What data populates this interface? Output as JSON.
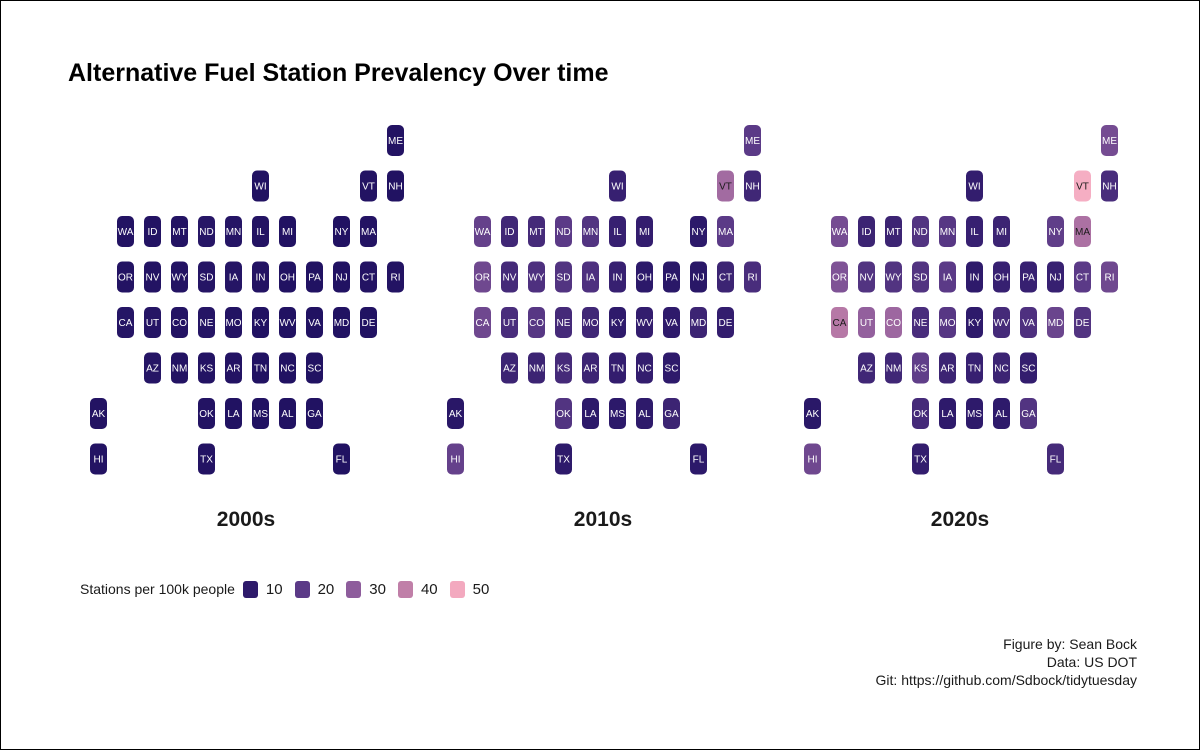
{
  "title": "Alternative Fuel Station Prevalency Over time",
  "chart_data": {
    "type": "heatmap",
    "subtype": "us-state-tile-grid",
    "title": "Alternative Fuel Station Prevalency Over time",
    "grid_rows": 8,
    "grid_cols": 12,
    "tile_layout": [
      {
        "state": "ME",
        "row": 0,
        "col": 11
      },
      {
        "state": "WI",
        "row": 1,
        "col": 6
      },
      {
        "state": "VT",
        "row": 1,
        "col": 10
      },
      {
        "state": "NH",
        "row": 1,
        "col": 11
      },
      {
        "state": "WA",
        "row": 2,
        "col": 1
      },
      {
        "state": "ID",
        "row": 2,
        "col": 2
      },
      {
        "state": "MT",
        "row": 2,
        "col": 3
      },
      {
        "state": "ND",
        "row": 2,
        "col": 4
      },
      {
        "state": "MN",
        "row": 2,
        "col": 5
      },
      {
        "state": "IL",
        "row": 2,
        "col": 6
      },
      {
        "state": "MI",
        "row": 2,
        "col": 7
      },
      {
        "state": "NY",
        "row": 2,
        "col": 9
      },
      {
        "state": "MA",
        "row": 2,
        "col": 10
      },
      {
        "state": "OR",
        "row": 3,
        "col": 1
      },
      {
        "state": "NV",
        "row": 3,
        "col": 2
      },
      {
        "state": "WY",
        "row": 3,
        "col": 3
      },
      {
        "state": "SD",
        "row": 3,
        "col": 4
      },
      {
        "state": "IA",
        "row": 3,
        "col": 5
      },
      {
        "state": "IN",
        "row": 3,
        "col": 6
      },
      {
        "state": "OH",
        "row": 3,
        "col": 7
      },
      {
        "state": "PA",
        "row": 3,
        "col": 8
      },
      {
        "state": "NJ",
        "row": 3,
        "col": 9
      },
      {
        "state": "CT",
        "row": 3,
        "col": 10
      },
      {
        "state": "RI",
        "row": 3,
        "col": 11
      },
      {
        "state": "CA",
        "row": 4,
        "col": 1
      },
      {
        "state": "UT",
        "row": 4,
        "col": 2
      },
      {
        "state": "CO",
        "row": 4,
        "col": 3
      },
      {
        "state": "NE",
        "row": 4,
        "col": 4
      },
      {
        "state": "MO",
        "row": 4,
        "col": 5
      },
      {
        "state": "KY",
        "row": 4,
        "col": 6
      },
      {
        "state": "WV",
        "row": 4,
        "col": 7
      },
      {
        "state": "VA",
        "row": 4,
        "col": 8
      },
      {
        "state": "MD",
        "row": 4,
        "col": 9
      },
      {
        "state": "DE",
        "row": 4,
        "col": 10
      },
      {
        "state": "AZ",
        "row": 5,
        "col": 2
      },
      {
        "state": "NM",
        "row": 5,
        "col": 3
      },
      {
        "state": "KS",
        "row": 5,
        "col": 4
      },
      {
        "state": "AR",
        "row": 5,
        "col": 5
      },
      {
        "state": "TN",
        "row": 5,
        "col": 6
      },
      {
        "state": "NC",
        "row": 5,
        "col": 7
      },
      {
        "state": "SC",
        "row": 5,
        "col": 8
      },
      {
        "state": "AK",
        "row": 6,
        "col": 0
      },
      {
        "state": "OK",
        "row": 6,
        "col": 4
      },
      {
        "state": "LA",
        "row": 6,
        "col": 5
      },
      {
        "state": "MS",
        "row": 6,
        "col": 6
      },
      {
        "state": "AL",
        "row": 6,
        "col": 7
      },
      {
        "state": "GA",
        "row": 6,
        "col": 8
      },
      {
        "state": "HI",
        "row": 7,
        "col": 0
      },
      {
        "state": "TX",
        "row": 7,
        "col": 4
      },
      {
        "state": "FL",
        "row": 7,
        "col": 9
      }
    ],
    "panels": [
      {
        "label": "2000s",
        "values": {
          "ME": 4,
          "WI": 3,
          "VT": 4,
          "NH": 3,
          "WA": 4,
          "ID": 4,
          "MT": 4,
          "ND": 6,
          "MN": 5,
          "IL": 4,
          "MI": 3,
          "NY": 3,
          "MA": 4,
          "OR": 4,
          "NV": 4,
          "WY": 4,
          "SD": 5,
          "IA": 5,
          "IN": 4,
          "OH": 3,
          "PA": 3,
          "NJ": 3,
          "CT": 4,
          "RI": 4,
          "CA": 5,
          "UT": 5,
          "CO": 4,
          "NE": 5,
          "MO": 4,
          "KY": 3,
          "WV": 3,
          "VA": 3,
          "MD": 3,
          "DE": 3,
          "AZ": 5,
          "NM": 4,
          "KS": 4,
          "AR": 4,
          "TN": 3,
          "NC": 3,
          "SC": 3,
          "AK": 4,
          "OK": 4,
          "LA": 3,
          "MS": 3,
          "AL": 3,
          "GA": 3,
          "HI": 4,
          "TX": 4,
          "FL": 3
        }
      },
      {
        "label": "2010s",
        "values": {
          "ME": 20,
          "WI": 12,
          "VT": 34,
          "NH": 14,
          "WA": 22,
          "ID": 14,
          "MT": 15,
          "ND": 20,
          "MN": 18,
          "IL": 12,
          "MI": 11,
          "NY": 9,
          "MA": 20,
          "OR": 24,
          "NV": 15,
          "WY": 17,
          "SD": 18,
          "IA": 17,
          "IN": 12,
          "OH": 9,
          "PA": 8,
          "NJ": 7,
          "CT": 13,
          "RI": 16,
          "CA": 24,
          "UT": 16,
          "CO": 19,
          "NE": 15,
          "MO": 14,
          "KY": 10,
          "WV": 11,
          "VA": 10,
          "MD": 13,
          "DE": 11,
          "AZ": 13,
          "NM": 13,
          "KS": 15,
          "AR": 13,
          "TN": 11,
          "NC": 11,
          "SC": 10,
          "AK": 7,
          "OK": 18,
          "LA": 9,
          "MS": 9,
          "AL": 10,
          "GA": 13,
          "HI": 22,
          "TX": 10,
          "FL": 9
        }
      },
      {
        "label": "2020s",
        "values": {
          "ME": 25,
          "WI": 11,
          "VT": 52,
          "NH": 16,
          "WA": 25,
          "ID": 13,
          "MT": 13,
          "ND": 18,
          "MN": 19,
          "IL": 12,
          "MI": 13,
          "NY": 21,
          "MA": 36,
          "OR": 27,
          "NV": 18,
          "WY": 18,
          "SD": 18,
          "IA": 20,
          "IN": 10,
          "OH": 12,
          "PA": 12,
          "NJ": 12,
          "CT": 20,
          "RI": 24,
          "CA": 38,
          "UT": 31,
          "CO": 33,
          "NE": 16,
          "MO": 19,
          "KY": 10,
          "WV": 15,
          "VA": 17,
          "MD": 23,
          "DE": 18,
          "AZ": 14,
          "NM": 14,
          "KS": 21,
          "AR": 13,
          "TN": 12,
          "NC": 13,
          "SC": 11,
          "AK": 8,
          "OK": 15,
          "LA": 10,
          "MS": 10,
          "AL": 10,
          "GA": 18,
          "HI": 24,
          "TX": 11,
          "FL": 15
        }
      }
    ],
    "color_scale": {
      "name": "Stations per 100k people",
      "stops": [
        {
          "value": 0,
          "color": "#1c0f5e"
        },
        {
          "value": 10,
          "color": "#2e1a6b"
        },
        {
          "value": 20,
          "color": "#5b3a87"
        },
        {
          "value": 30,
          "color": "#8e5d9c"
        },
        {
          "value": 40,
          "color": "#c07fa8"
        },
        {
          "value": 50,
          "color": "#f3a9bf"
        },
        {
          "value": 60,
          "color": "#fcc2d2"
        }
      ],
      "dark_text_above": 33,
      "text_light": "#ffffff",
      "text_dark": "#1a1a1a"
    },
    "legend": {
      "title": "Stations per 100k people",
      "position": "bottom-left",
      "items": [
        {
          "label": "10",
          "color": "#2e1a6b"
        },
        {
          "label": "20",
          "color": "#5b3a87"
        },
        {
          "label": "30",
          "color": "#8e5d9c"
        },
        {
          "label": "40",
          "color": "#c07fa8"
        },
        {
          "label": "50",
          "color": "#f3a9bf"
        }
      ]
    }
  },
  "caption": {
    "line1": "Figure by: Sean Bock",
    "line2": "Data: US DOT",
    "line3": "Git: https://github.com/Sdbock/tidytuesday"
  }
}
